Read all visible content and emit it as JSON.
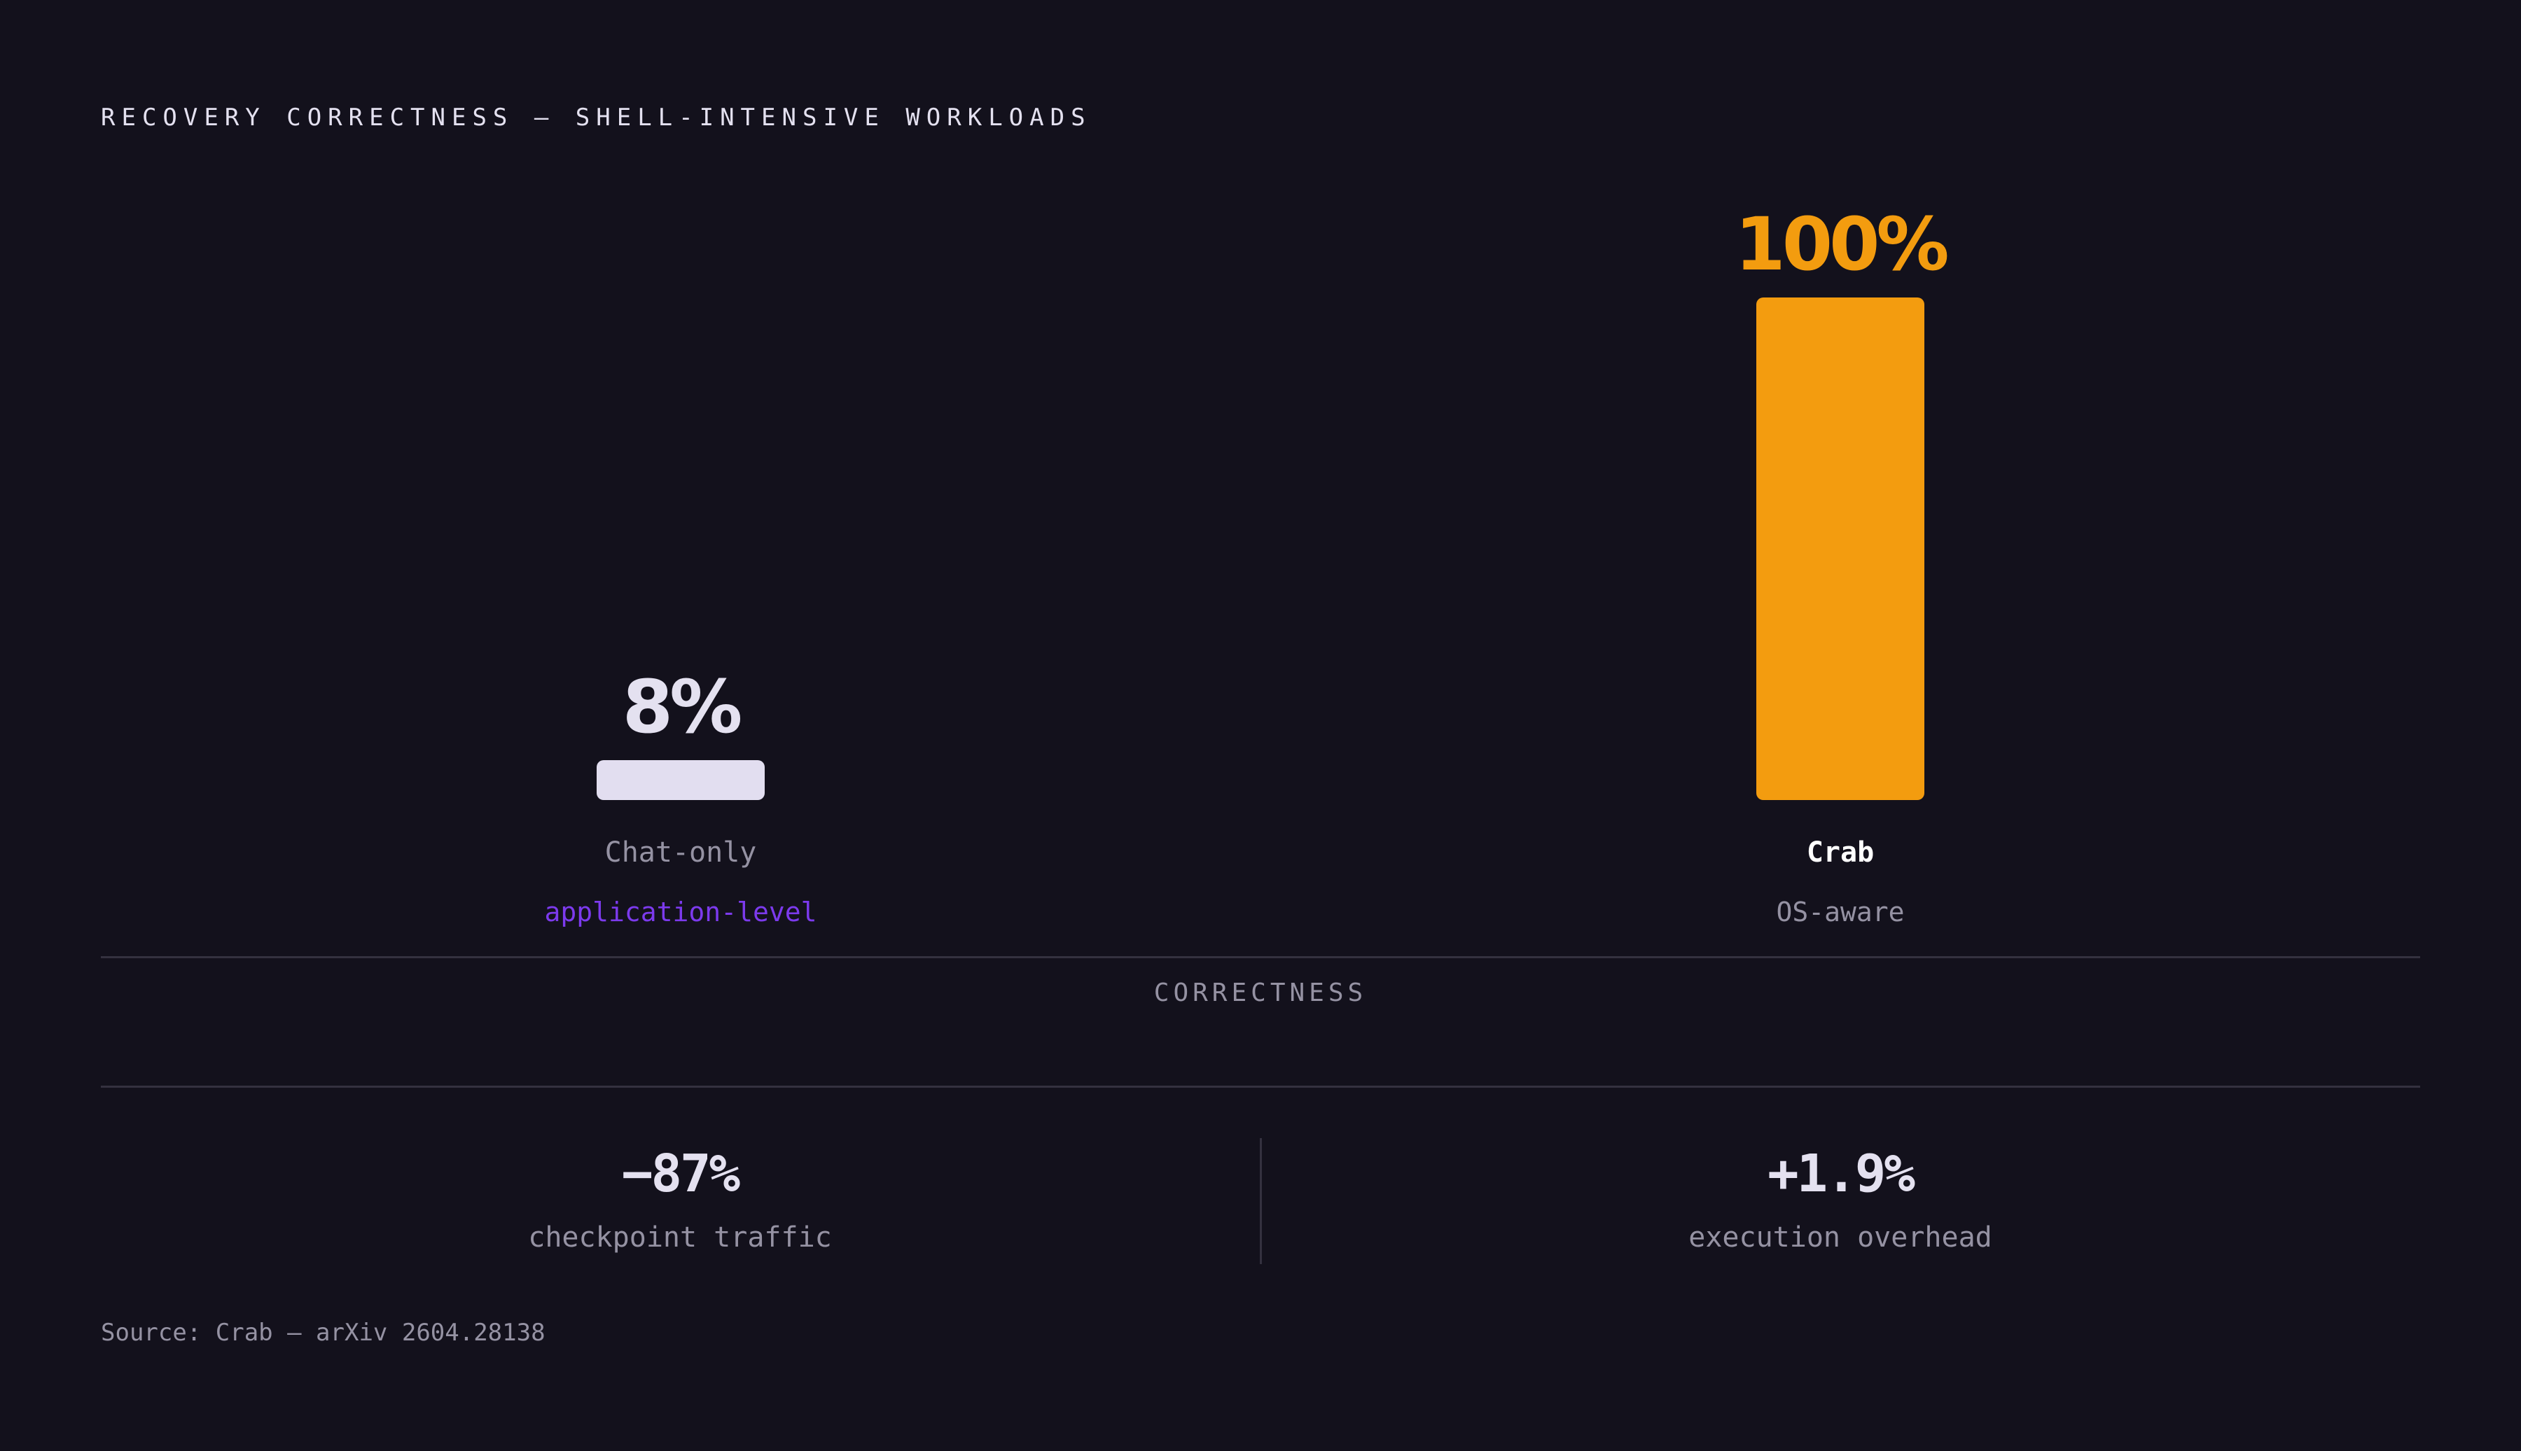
{
  "title": "RECOVERY CORRECTNESS — SHELL-INTENSIVE WORKLOADS",
  "chart_data": {
    "type": "bar",
    "title": "RECOVERY CORRECTNESS — SHELL-INTENSIVE WORKLOADS",
    "xlabel": "CORRECTNESS",
    "ylabel": "",
    "ylim": [
      0,
      100
    ],
    "categories": [
      "Chat-only",
      "Crab"
    ],
    "values": [
      8,
      100
    ],
    "value_labels": [
      "8%",
      "100%"
    ],
    "subtitles": [
      "application-level",
      "OS-aware"
    ],
    "colors": [
      "#e2def0",
      "#f39c0f"
    ],
    "value_colors": [
      "#e4e1f0",
      "#f39c0f"
    ],
    "name_colors": [
      "#9592a3",
      "#ffffff"
    ],
    "subtitle_colors": [
      "#7c3aed",
      "#9592a3"
    ],
    "grid": false,
    "legend": "none"
  },
  "stats": [
    {
      "value": "−87%",
      "label": "checkpoint traffic"
    },
    {
      "value": "+1.9%",
      "label": "execution overhead"
    }
  ],
  "source": "Source: Crab — arXiv 2604.28138"
}
